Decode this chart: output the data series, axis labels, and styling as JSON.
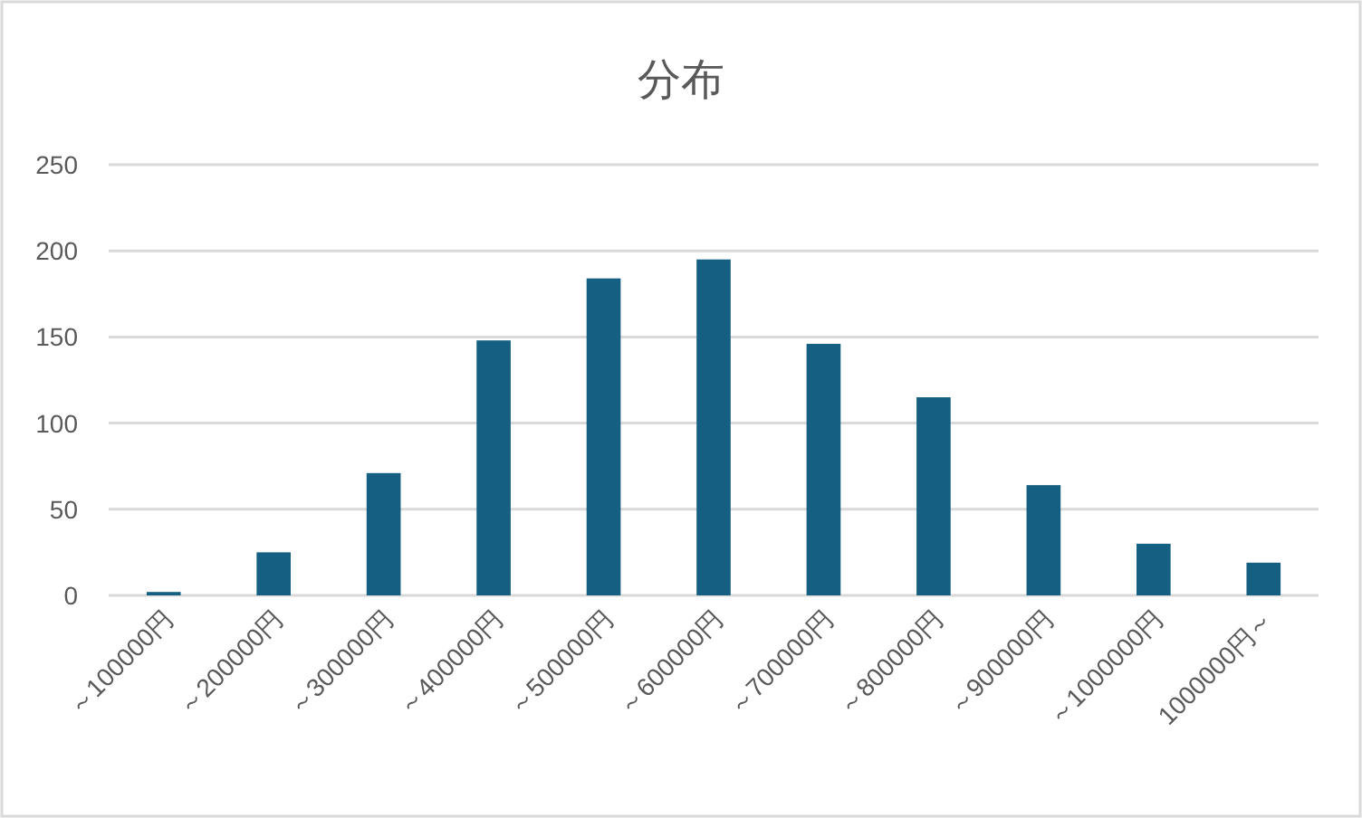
{
  "chart_data": {
    "type": "bar",
    "title": "分布",
    "categories": [
      "～100000円",
      "～200000円",
      "～300000円",
      "～400000円",
      "～500000円",
      "～600000円",
      "～700000円",
      "～800000円",
      "～900000円",
      "～1000000円",
      "1000000円～"
    ],
    "values": [
      2,
      25,
      71,
      148,
      184,
      195,
      146,
      115,
      64,
      30,
      19
    ],
    "color": "#156082",
    "ylim": [
      0,
      250
    ],
    "yticks": [
      0,
      50,
      100,
      150,
      200,
      250
    ],
    "grid": "y"
  }
}
